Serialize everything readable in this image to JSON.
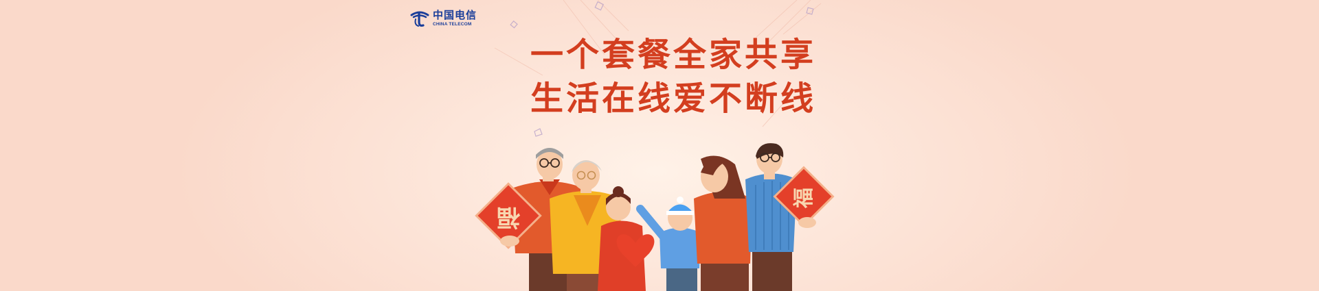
{
  "brand": {
    "logo_cn": "中国电信",
    "logo_en": "CHINA TELECOM",
    "color": "#1a3e9a"
  },
  "headline": {
    "line1": "一个套餐全家共享",
    "line2": "生活在线爱不断线",
    "color": "#d33e1f"
  },
  "illustration": {
    "sign_char": "福",
    "icons": [
      "china-telecom-logo-icon",
      "fu-sign-icon",
      "heart-icon"
    ]
  }
}
